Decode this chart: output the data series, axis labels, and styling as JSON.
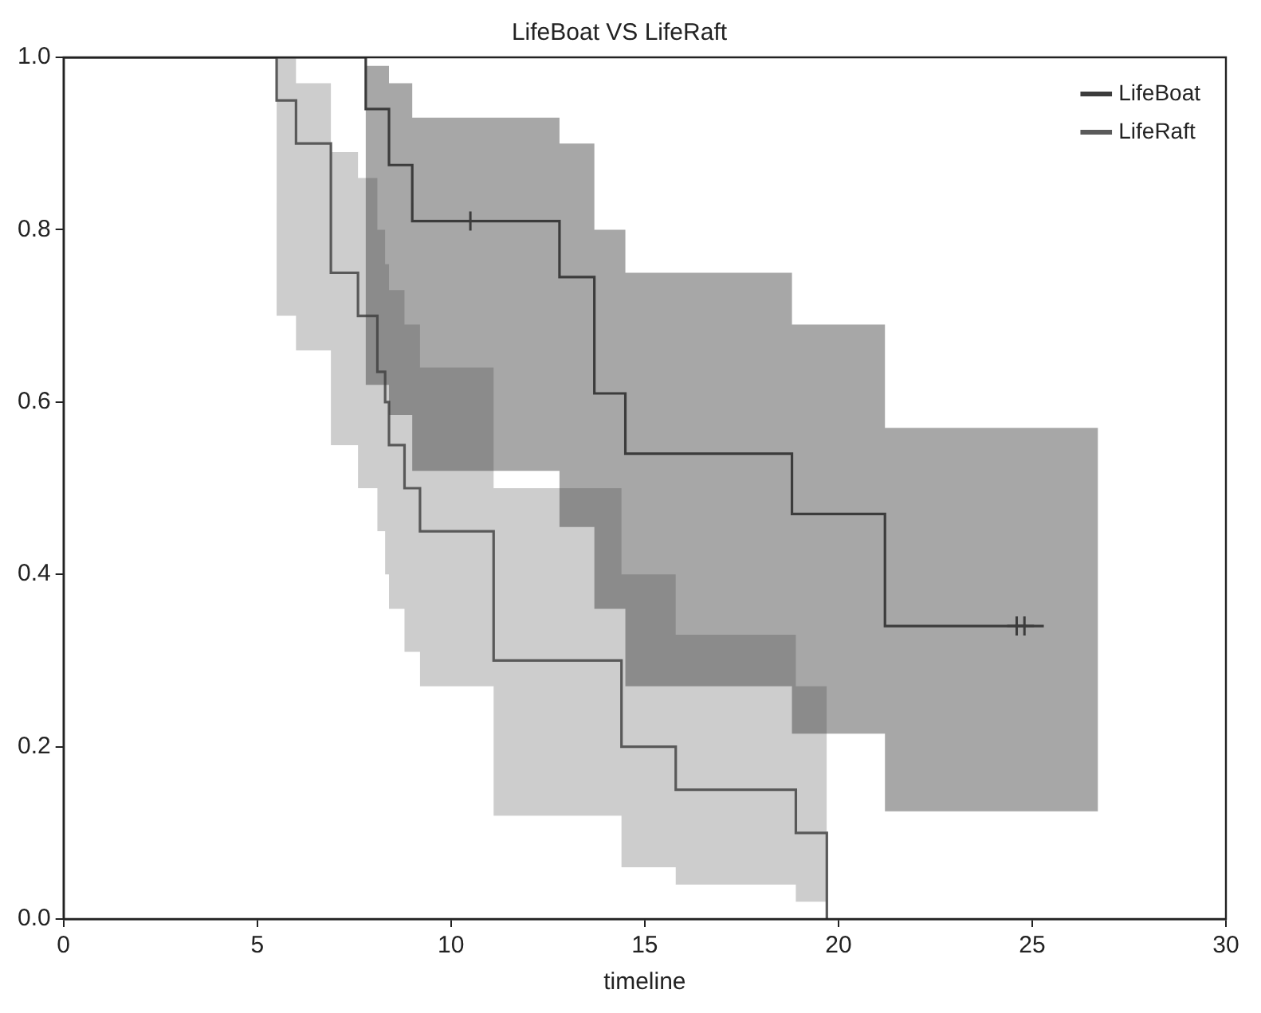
{
  "chart_data": {
    "type": "step",
    "title": "LifeBoat VS LifeRaft",
    "xlabel": "timeline",
    "xlim": [
      0,
      30
    ],
    "ylim": [
      0,
      1
    ],
    "xticks": [
      0,
      5,
      10,
      15,
      20,
      25,
      30
    ],
    "yticks": [
      {
        "value": 0,
        "label": "0.0"
      },
      {
        "value": 0.2,
        "label": "0.2"
      },
      {
        "value": 0.4,
        "label": "0.4"
      },
      {
        "value": 0.6,
        "label": "0.6"
      },
      {
        "value": 0.8,
        "label": "0.8"
      },
      {
        "value": 1,
        "label": "1.0"
      }
    ],
    "grid": false,
    "legend": "top right",
    "series": [
      {
        "name": "LifeBoat",
        "color": "#3c3c3c",
        "x": [
          0,
          7.8,
          8.4,
          9.0,
          12.8,
          13.7,
          14.5,
          18.8,
          21.2,
          25.3,
          26.7
        ],
        "values": [
          1.0,
          0.94,
          0.875,
          0.81,
          0.745,
          0.61,
          0.54,
          0.47,
          0.34,
          0.34,
          null
        ],
        "lower": [
          1.0,
          0.62,
          0.585,
          0.52,
          0.455,
          0.36,
          0.27,
          0.215,
          0.125,
          0.125,
          0.125
        ],
        "upper": [
          1.0,
          0.99,
          0.97,
          0.93,
          0.9,
          0.8,
          0.75,
          0.69,
          0.57,
          0.57,
          0.57
        ]
      },
      {
        "name": "LifeRaft",
        "color": "#5a5a5a",
        "x": [
          0,
          5.5,
          6.0,
          6.9,
          7.6,
          8.1,
          8.3,
          8.4,
          8.8,
          9.2,
          11.1,
          14.4,
          15.8,
          18.9,
          19.7
        ],
        "values": [
          1.0,
          0.95,
          0.9,
          0.75,
          0.7,
          0.635,
          0.6,
          0.55,
          0.5,
          0.45,
          0.3,
          0.2,
          0.15,
          0.1,
          0.0
        ],
        "lower": [
          1.0,
          0.7,
          0.66,
          0.55,
          0.5,
          0.45,
          0.4,
          0.36,
          0.31,
          0.27,
          0.12,
          0.06,
          0.04,
          0.02,
          0.0
        ],
        "upper": [
          1.0,
          1.0,
          0.97,
          0.89,
          0.86,
          0.8,
          0.76,
          0.73,
          0.69,
          0.64,
          0.5,
          0.4,
          0.33,
          0.27,
          0.0
        ]
      },
      {
        "type": "scatter",
        "marker": "cross",
        "color": "#3c3c3c",
        "x": [
          10.5,
          24.6,
          24.8
        ],
        "values": [
          0.81,
          0.34,
          0.34
        ]
      }
    ]
  }
}
